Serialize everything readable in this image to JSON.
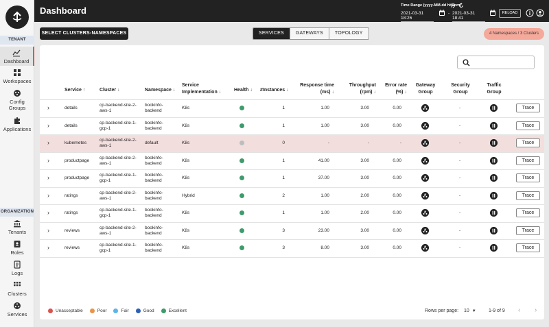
{
  "header": {
    "title": "Dashboard",
    "time_range_label": "Time Range (yyyy-MM-dd hh:mm)",
    "start": "2021-03-31 18:26",
    "separator": "-",
    "end": "2021-03-31 18:41",
    "reload_label": "RELOAD"
  },
  "sidebar": {
    "tenant_label": "TENANT",
    "organization_label": "ORGANIZATION",
    "tenant_items": [
      {
        "label": "Dashboard",
        "icon": "dashboard-icon"
      },
      {
        "label": "Workspaces",
        "icon": "workspaces-icon"
      },
      {
        "label": "Config",
        "label2": "Groups",
        "icon": "config-groups-icon"
      },
      {
        "label": "Applications",
        "icon": "applications-icon"
      }
    ],
    "org_items": [
      {
        "label": "Tenants",
        "icon": "tenants-icon"
      },
      {
        "label": "Roles",
        "icon": "roles-icon"
      },
      {
        "label": "Logs",
        "icon": "logs-icon"
      },
      {
        "label": "Clusters",
        "icon": "clusters-icon"
      },
      {
        "label": "Services",
        "icon": "services-icon"
      }
    ]
  },
  "toolbar": {
    "select_label": "SELECT CLUSTERS-NAMESPACES",
    "tabs": [
      "SERVICES",
      "GATEWAYS",
      "TOPOLOGY"
    ],
    "active_tab": "SERVICES",
    "badge": "4 Namespaces / 3 Clusters"
  },
  "search": {
    "placeholder": ""
  },
  "table": {
    "headers": {
      "service": "Service",
      "cluster": "Cluster",
      "namespace": "Namespace",
      "impl1": "Service",
      "impl2": "Implementation",
      "health": "Health",
      "instances": "#Instances",
      "resp1": "Response time",
      "resp2": "(ms)",
      "thr1": "Throughput",
      "thr2": "(rpm)",
      "err1": "Error rate",
      "err2": "(%)",
      "gw1": "Gateway",
      "gw2": "Group",
      "sec1": "Security",
      "sec2": "Group",
      "tf1": "Traffic",
      "tf2": "Group"
    },
    "rows": [
      {
        "service": "details",
        "cluster1": "cp-backend-site-2-",
        "cluster2": "aws-1",
        "ns1": "bookinfo-",
        "ns2": "backend",
        "impl": "K8s",
        "health": "excellent",
        "instances": "1",
        "response": "1.00",
        "throughput": "3.00",
        "error": "0.00",
        "gateway": "-",
        "security": "-",
        "trace": "Trace"
      },
      {
        "service": "details",
        "cluster1": "cp-backend-site-1-",
        "cluster2": "gcp-1",
        "ns1": "bookinfo-",
        "ns2": "backend",
        "impl": "K8s",
        "health": "excellent",
        "instances": "1",
        "response": "1.00",
        "throughput": "3.00",
        "error": "0.00",
        "gateway": "-",
        "security": "-",
        "trace": "Trace"
      },
      {
        "service": "kubernetes",
        "cluster1": "cp-backend-site-2-",
        "cluster2": "aws-1",
        "ns1": "default",
        "ns2": "",
        "impl": "K8s",
        "health": "none",
        "instances": "0",
        "response": "-",
        "throughput": "-",
        "error": "-",
        "gateway": "-",
        "security": "-",
        "trace": "Trace"
      },
      {
        "service": "productpage",
        "cluster1": "cp-backend-site-2-",
        "cluster2": "aws-1",
        "ns1": "bookinfo-",
        "ns2": "backend",
        "impl": "K8s",
        "health": "excellent",
        "instances": "1",
        "response": "41.00",
        "throughput": "3.00",
        "error": "0.00",
        "gateway": "-",
        "security": "-",
        "trace": "Trace"
      },
      {
        "service": "productpage",
        "cluster1": "cp-backend-site-1-",
        "cluster2": "gcp-1",
        "ns1": "bookinfo-",
        "ns2": "backend",
        "impl": "K8s",
        "health": "excellent",
        "instances": "1",
        "response": "37.00",
        "throughput": "3.00",
        "error": "0.00",
        "gateway": "-",
        "security": "-",
        "trace": "Trace"
      },
      {
        "service": "ratings",
        "cluster1": "cp-backend-site-2-",
        "cluster2": "aws-1",
        "ns1": "bookinfo-",
        "ns2": "backend",
        "impl": "Hybrid",
        "health": "excellent",
        "instances": "2",
        "response": "1.00",
        "throughput": "2.00",
        "error": "0.00",
        "gateway": "-",
        "security": "-",
        "trace": "Trace"
      },
      {
        "service": "ratings",
        "cluster1": "cp-backend-site-1-",
        "cluster2": "gcp-1",
        "ns1": "bookinfo-",
        "ns2": "backend",
        "impl": "K8s",
        "health": "excellent",
        "instances": "1",
        "response": "1.00",
        "throughput": "2.00",
        "error": "0.00",
        "gateway": "-",
        "security": "-",
        "trace": "Trace"
      },
      {
        "service": "reviews",
        "cluster1": "cp-backend-site-2-",
        "cluster2": "aws-1",
        "ns1": "bookinfo-",
        "ns2": "backend",
        "impl": "K8s",
        "health": "excellent",
        "instances": "3",
        "response": "23.00",
        "throughput": "3.00",
        "error": "0.00",
        "gateway": "-",
        "security": "-",
        "trace": "Trace"
      },
      {
        "service": "reviews",
        "cluster1": "cp-backend-site-1-",
        "cluster2": "gcp-1",
        "ns1": "bookinfo-",
        "ns2": "backend",
        "impl": "K8s",
        "health": "excellent",
        "instances": "3",
        "response": "8.00",
        "throughput": "3.00",
        "error": "0.00",
        "gateway": "-",
        "security": "-",
        "trace": "Trace"
      }
    ]
  },
  "legend": [
    {
      "label": "Unacceptable",
      "color": "#d9534f"
    },
    {
      "label": "Poor",
      "color": "#e8944a"
    },
    {
      "label": "Fair",
      "color": "#5bb5e8"
    },
    {
      "label": "Good",
      "color": "#2e5fb3"
    },
    {
      "label": "Excellent",
      "color": "#3e9b6b"
    }
  ],
  "health_colors": {
    "excellent": "#3e9b6b",
    "none": "#bdbdbd"
  },
  "pagination": {
    "rows_per_page_label": "Rows per page:",
    "rows_per_page": "10",
    "range": "1-9 of 9"
  }
}
